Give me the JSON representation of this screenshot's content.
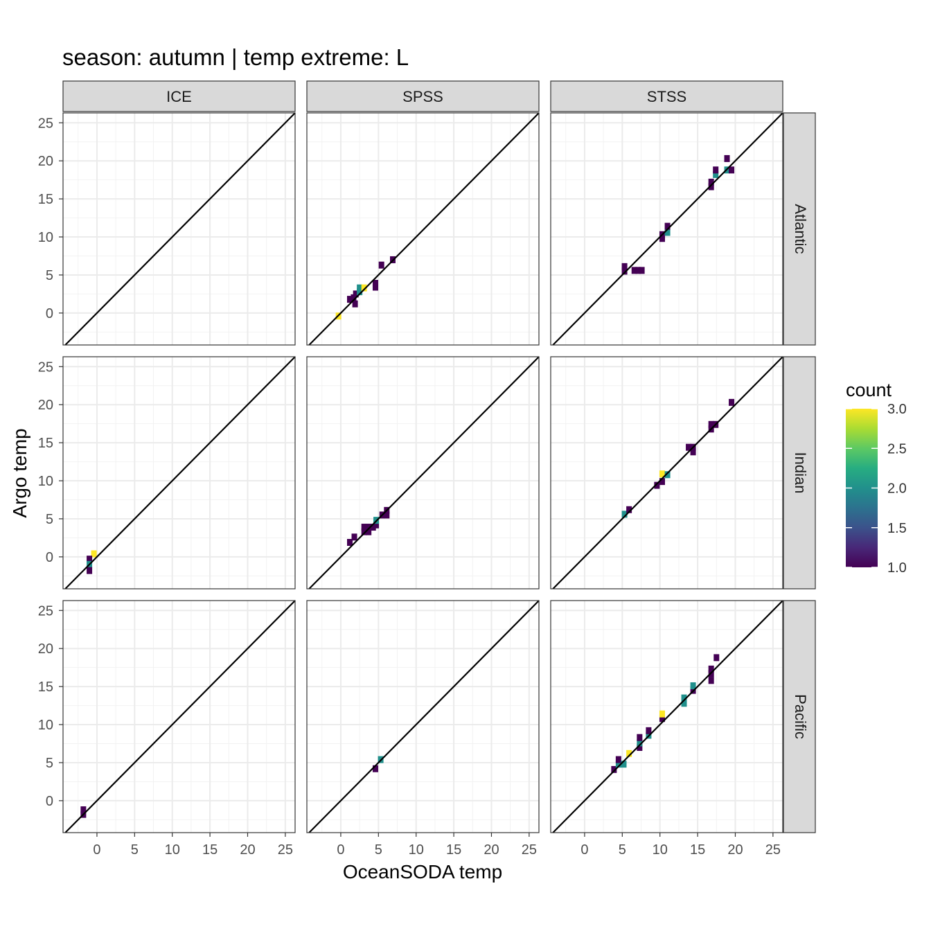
{
  "chart_data": {
    "type": "heatmap",
    "title": "season: autumn | temp extreme: L",
    "xlabel": "OceanSODA temp",
    "ylabel": "Argo temp",
    "xlim": [
      -4.5,
      26.3
    ],
    "ylim": [
      -4.2,
      26.3
    ],
    "x_ticks": [
      0,
      5,
      10,
      15,
      20,
      25
    ],
    "y_ticks": [
      0,
      5,
      10,
      15,
      20,
      25
    ],
    "x_tick_labels": [
      "0",
      "5",
      "10",
      "15",
      "20",
      "25"
    ],
    "y_tick_labels": [
      "0",
      "5",
      "10",
      "15",
      "20",
      "25"
    ],
    "grid": true,
    "identity_line": true,
    "col_facets": [
      "ICE",
      "SPSS",
      "STSS"
    ],
    "row_facets": [
      "Atlantic",
      "Indian",
      "Pacific"
    ],
    "legend": {
      "title": "count",
      "position": "right",
      "min": 1.0,
      "max": 3.0,
      "breaks": [
        1.0,
        1.5,
        2.0,
        2.5,
        3.0
      ],
      "break_labels": [
        "1.0",
        "1.5",
        "2.0",
        "2.5",
        "3.0"
      ],
      "palette": [
        "#440154",
        "#3b528b",
        "#21908c",
        "#5dc963",
        "#fde725"
      ]
    },
    "panels": [
      {
        "row": "Atlantic",
        "col": "ICE",
        "cells": []
      },
      {
        "row": "Atlantic",
        "col": "SPSS",
        "cells": [
          [
            -0.3,
            -0.4,
            3
          ],
          [
            1.2,
            1.8,
            1
          ],
          [
            1.7,
            2.0,
            1
          ],
          [
            2.0,
            2.5,
            1
          ],
          [
            1.9,
            1.2,
            1
          ],
          [
            2.5,
            2.8,
            2
          ],
          [
            2.5,
            3.3,
            2
          ],
          [
            3.1,
            3.3,
            3
          ],
          [
            4.6,
            3.4,
            1
          ],
          [
            4.6,
            3.9,
            1
          ],
          [
            5.4,
            6.3,
            1
          ],
          [
            6.9,
            7.0,
            1
          ]
        ]
      },
      {
        "row": "Atlantic",
        "col": "STSS",
        "cells": [
          [
            5.3,
            5.5,
            1
          ],
          [
            5.3,
            6.1,
            1
          ],
          [
            6.6,
            5.6,
            1
          ],
          [
            7.1,
            5.6,
            1
          ],
          [
            7.6,
            5.6,
            1
          ],
          [
            10.3,
            9.8,
            1
          ],
          [
            10.3,
            10.3,
            1
          ],
          [
            11.0,
            10.6,
            2
          ],
          [
            11.0,
            11.4,
            1
          ],
          [
            16.8,
            16.6,
            1
          ],
          [
            16.8,
            17.2,
            1
          ],
          [
            17.4,
            18.2,
            2
          ],
          [
            17.4,
            18.8,
            1
          ],
          [
            18.9,
            18.8,
            2
          ],
          [
            19.5,
            18.8,
            1
          ],
          [
            18.9,
            20.3,
            1
          ]
        ]
      },
      {
        "row": "Indian",
        "col": "ICE",
        "cells": [
          [
            -0.4,
            0.4,
            3
          ],
          [
            -1.0,
            -0.3,
            1
          ],
          [
            -1.0,
            -1.0,
            2
          ],
          [
            -1.0,
            -1.8,
            1
          ]
        ]
      },
      {
        "row": "Indian",
        "col": "SPSS",
        "cells": [
          [
            1.2,
            1.9,
            1
          ],
          [
            1.8,
            2.6,
            1
          ],
          [
            3.1,
            3.3,
            1
          ],
          [
            3.1,
            3.9,
            1
          ],
          [
            3.7,
            3.3,
            1
          ],
          [
            3.7,
            3.9,
            1
          ],
          [
            4.3,
            3.9,
            1
          ],
          [
            4.7,
            4.2,
            1
          ],
          [
            4.7,
            4.8,
            2
          ],
          [
            5.5,
            5.5,
            1
          ],
          [
            6.1,
            5.5,
            1
          ],
          [
            6.1,
            6.1,
            1
          ]
        ]
      },
      {
        "row": "Indian",
        "col": "STSS",
        "cells": [
          [
            5.3,
            5.6,
            2
          ],
          [
            5.9,
            6.2,
            1
          ],
          [
            9.6,
            9.4,
            1
          ],
          [
            10.3,
            9.9,
            1
          ],
          [
            10.3,
            10.9,
            3
          ],
          [
            11.0,
            10.8,
            2
          ],
          [
            13.8,
            14.4,
            1
          ],
          [
            14.4,
            13.8,
            1
          ],
          [
            14.4,
            14.4,
            1
          ],
          [
            16.8,
            16.8,
            1
          ],
          [
            16.8,
            17.4,
            1
          ],
          [
            17.4,
            17.4,
            1
          ],
          [
            19.5,
            20.3,
            1
          ]
        ]
      },
      {
        "row": "Pacific",
        "col": "ICE",
        "cells": [
          [
            -1.8,
            -1.2,
            1
          ],
          [
            -1.8,
            -1.8,
            1
          ]
        ]
      },
      {
        "row": "Pacific",
        "col": "SPSS",
        "cells": [
          [
            4.6,
            4.2,
            1
          ],
          [
            5.3,
            5.4,
            2
          ]
        ]
      },
      {
        "row": "Pacific",
        "col": "STSS",
        "cells": [
          [
            3.9,
            4.1,
            1
          ],
          [
            4.5,
            4.8,
            2
          ],
          [
            4.5,
            5.4,
            1
          ],
          [
            5.2,
            4.8,
            2
          ],
          [
            5.9,
            6.2,
            3
          ],
          [
            7.3,
            7.0,
            1
          ],
          [
            7.3,
            7.6,
            2
          ],
          [
            7.3,
            8.3,
            1
          ],
          [
            8.5,
            8.6,
            2
          ],
          [
            8.5,
            9.2,
            1
          ],
          [
            10.3,
            10.8,
            1
          ],
          [
            10.3,
            11.4,
            3
          ],
          [
            13.2,
            12.8,
            2
          ],
          [
            13.2,
            13.5,
            2
          ],
          [
            14.4,
            14.5,
            1
          ],
          [
            14.4,
            15.1,
            2
          ],
          [
            16.8,
            15.8,
            1
          ],
          [
            16.8,
            16.7,
            1
          ],
          [
            16.8,
            17.3,
            1
          ],
          [
            17.5,
            18.8,
            1
          ]
        ]
      }
    ]
  }
}
